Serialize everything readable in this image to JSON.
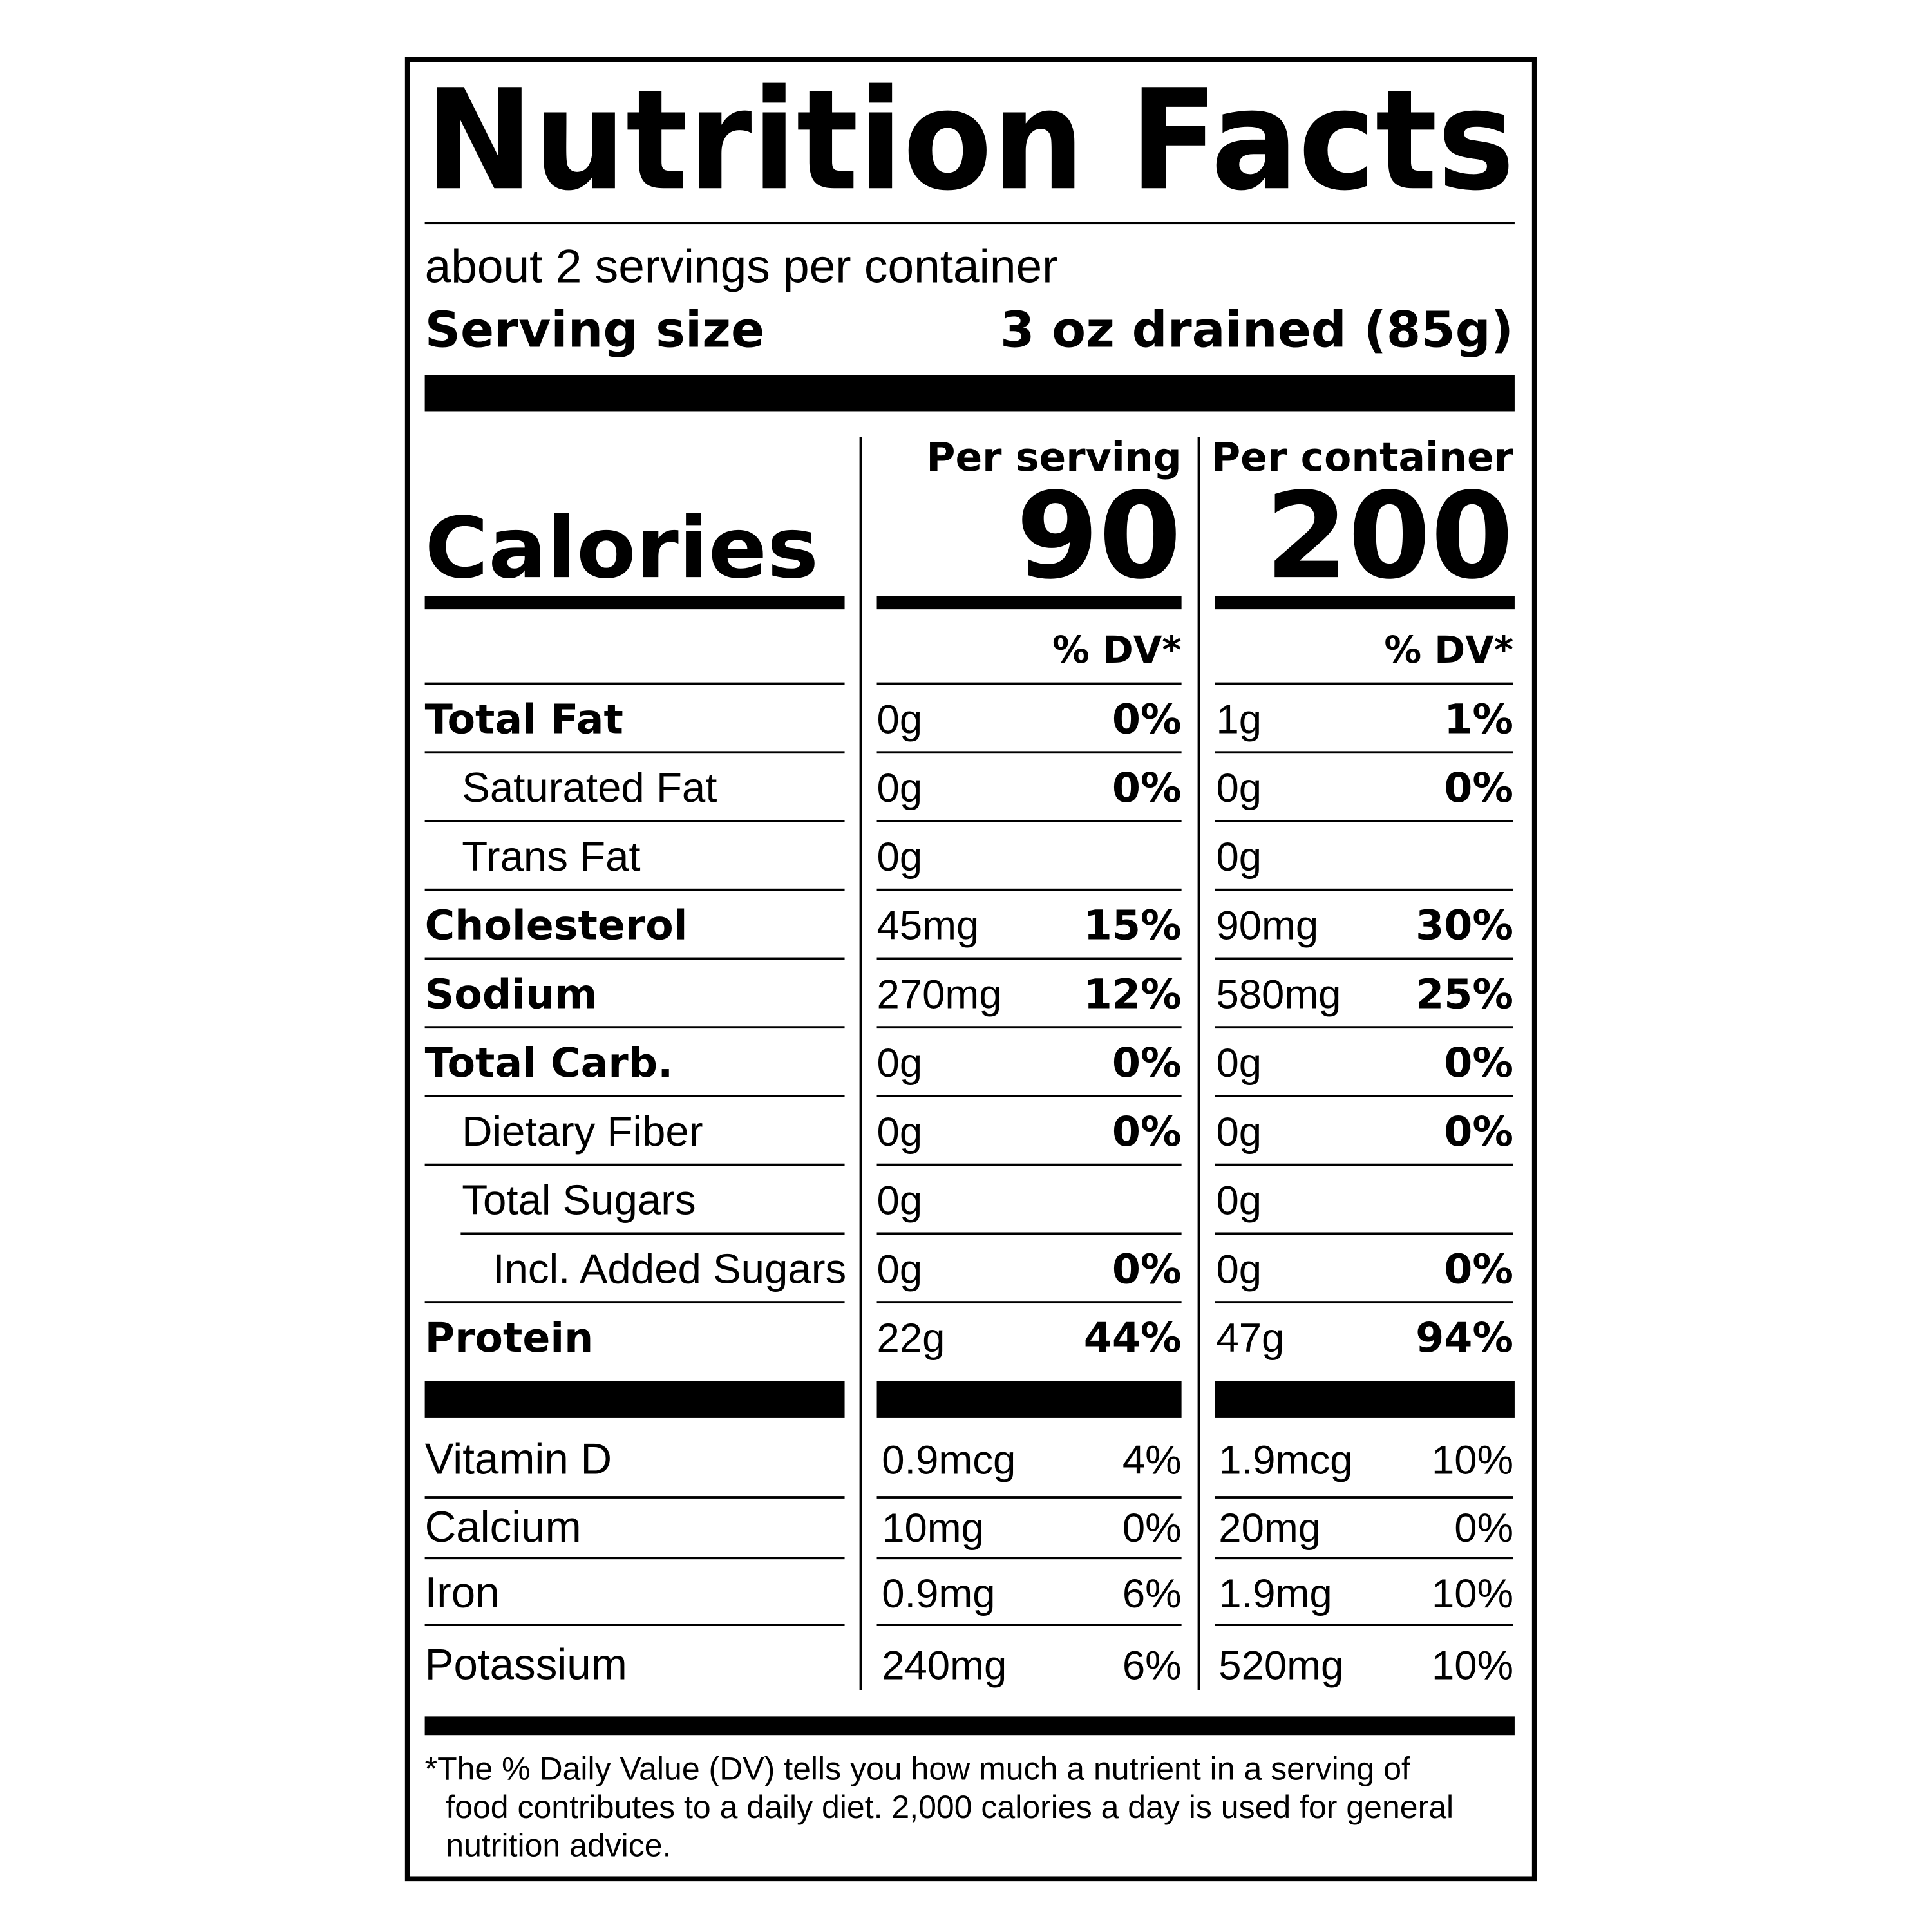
{
  "header": {
    "title": "Nutrition Facts",
    "servings_per_container": "about 2 servings per container",
    "serving_size_label": "Serving size",
    "serving_size_value": "3 oz drained (85g)"
  },
  "columns": {
    "per_serving": "Per serving",
    "per_container": "Per container"
  },
  "calories": {
    "label": "Calories",
    "per_serving": 90,
    "per_container": 200
  },
  "dv_header": {
    "per_serving": "% DV*",
    "per_container": "% DV*"
  },
  "nutrients": [
    {
      "name": "Total Fat",
      "serving_amount": "0g",
      "serving_dv": "0%",
      "container_amount": "1g",
      "container_dv": "1%"
    },
    {
      "name": "Saturated Fat",
      "serving_amount": "0g",
      "serving_dv": "0%",
      "container_amount": "0g",
      "container_dv": "0%"
    },
    {
      "name": "Trans Fat",
      "serving_amount": "0g",
      "container_amount": "0g"
    },
    {
      "name": "Cholesterol",
      "serving_amount": "45mg",
      "serving_dv": "15%",
      "container_amount": "90mg",
      "container_dv": "30%"
    },
    {
      "name": "Sodium",
      "serving_amount": "270mg",
      "serving_dv": "12%",
      "container_amount": "580mg",
      "container_dv": "25%"
    },
    {
      "name": "Total Carb.",
      "serving_amount": "0g",
      "serving_dv": "0%",
      "container_amount": "0g",
      "container_dv": "0%"
    },
    {
      "name": "Dietary Fiber",
      "serving_amount": "0g",
      "serving_dv": "0%",
      "container_amount": "0g",
      "container_dv": "0%"
    },
    {
      "name": "Total Sugars",
      "serving_amount": "0g",
      "container_amount": "0g"
    },
    {
      "name": "Incl. Added Sugars",
      "serving_amount": "0g",
      "serving_dv": "0%",
      "container_amount": "0g",
      "container_dv": "0%"
    },
    {
      "name": "Protein",
      "serving_amount": "22g",
      "serving_dv": "44%",
      "container_amount": "47g",
      "container_dv": "94%"
    }
  ],
  "vitamins": [
    {
      "name": "Vitamin D",
      "serving_amount": "0.9mcg",
      "serving_dv": "4%",
      "container_amount": "1.9mcg",
      "container_dv": "10%"
    },
    {
      "name": "Calcium",
      "serving_amount": "10mg",
      "serving_dv": "0%",
      "container_amount": "20mg",
      "container_dv": "0%"
    },
    {
      "name": "Iron",
      "serving_amount": "0.9mg",
      "serving_dv": "6%",
      "container_amount": "1.9mg",
      "container_dv": "10%"
    },
    {
      "name": "Potassium",
      "serving_amount": "240mg",
      "serving_dv": "6%",
      "container_amount": "520mg",
      "container_dv": "10%"
    }
  ],
  "footnote": [
    "*The % Daily Value (DV) tells you how much a nutrient in a serving of",
    "food contributes to a daily diet. 2,000 calories a day is used for general",
    "nutrition advice."
  ]
}
